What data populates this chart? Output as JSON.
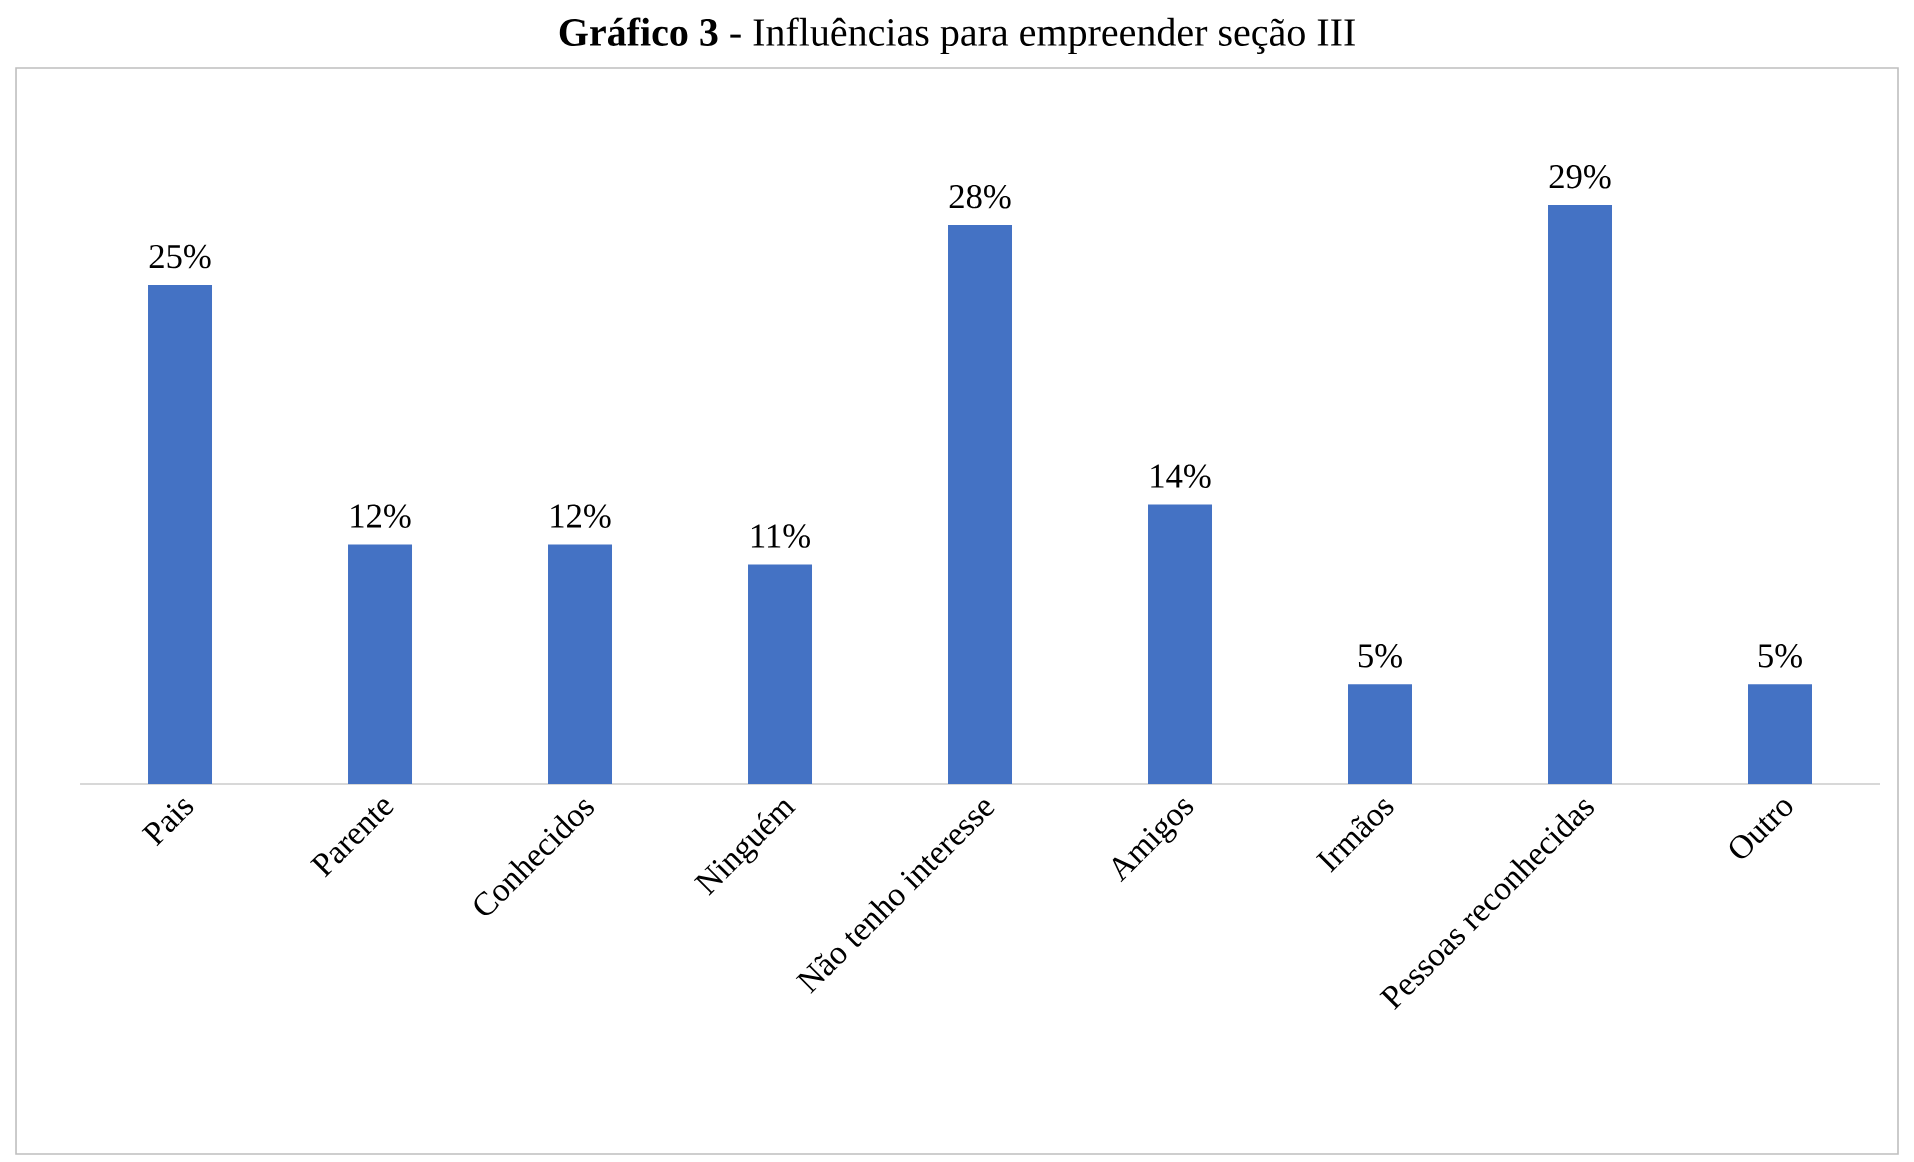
{
  "chart_data": {
    "type": "bar",
    "title": "**Gráfico 3** - Influências para empreender seção III",
    "categories": [
      "Pais",
      "Parente",
      "Conhecidos",
      "Ninguém",
      "Não tenho interesse",
      "Amigos",
      "Irmãos",
      "Pessoas reconhecidas",
      "Outro"
    ],
    "values": [
      25,
      12,
      12,
      11,
      28,
      14,
      5,
      29,
      5
    ],
    "value_labels": [
      "25%",
      "12%",
      "12%",
      "11%",
      "28%",
      "14%",
      "5%",
      "29%",
      "5%"
    ],
    "color": "#4472c4"
  }
}
